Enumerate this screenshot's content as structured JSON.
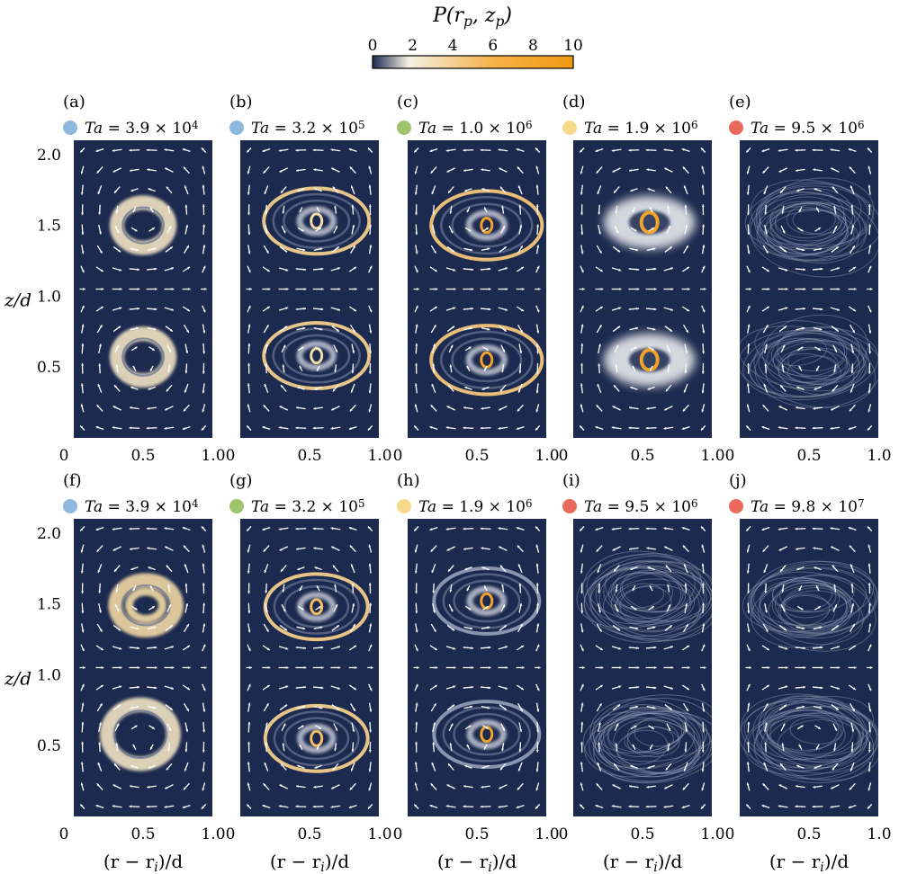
{
  "colorbar": {
    "label": "P(r_p, z_p)",
    "ticks": [
      0,
      2,
      4,
      6,
      8,
      10
    ],
    "range": [
      0,
      10
    ],
    "colors": [
      "#1c2a4f",
      "#f5f1e4",
      "#f6b24a",
      "#f09a10"
    ]
  },
  "chart_data": [
    {
      "type": "heatmap",
      "panel": "(a)",
      "ta_label": "Ta = 3.9 × 10^4",
      "marker_color": "#8eb8dd",
      "xlabel": "",
      "ylabel": "z/d",
      "xlim": [
        0,
        1
      ],
      "ylim": [
        0,
        2.1
      ],
      "xticks": [
        "0",
        "0.5",
        "1.0"
      ],
      "yticks": [
        "0.5",
        "1.0",
        "1.5",
        "2.0"
      ],
      "vortices": [
        {
          "center": [
            0.5,
            1.5
          ],
          "orbit_radius": [
            0.19,
            0.29
          ],
          "peak": 3,
          "tint": "#f1e2c2",
          "pattern": "ring"
        },
        {
          "center": [
            0.5,
            0.57
          ],
          "orbit_radius": [
            0.19,
            0.3
          ],
          "peak": 3,
          "tint": "#f1e2c2",
          "pattern": "ring"
        }
      ]
    },
    {
      "type": "heatmap",
      "panel": "(b)",
      "ta_label": "Ta = 3.2 × 10^5",
      "marker_color": "#8eb8dd",
      "xlabel": "",
      "ylabel": "",
      "xlim": [
        0,
        1
      ],
      "ylim": [
        0,
        2.1
      ],
      "xticks": [
        "0",
        "0.5",
        "1.0"
      ],
      "yticks": [],
      "vortices": [
        {
          "center": [
            0.55,
            1.53
          ],
          "orbit_radius": [
            0.38,
            0.42
          ],
          "peak": 4,
          "tint": "#f2cd8b",
          "pattern": "nested"
        },
        {
          "center": [
            0.55,
            0.58
          ],
          "orbit_radius": [
            0.38,
            0.42
          ],
          "peak": 4,
          "tint": "#f2cd8b",
          "pattern": "nested"
        }
      ]
    },
    {
      "type": "heatmap",
      "panel": "(c)",
      "ta_label": "Ta = 1.0 × 10^6",
      "marker_color": "#9ec46c",
      "xlabel": "",
      "ylabel": "",
      "xlim": [
        0,
        1
      ],
      "ylim": [
        0,
        2.1
      ],
      "xticks": [
        "0",
        "0.5",
        "1.0"
      ],
      "yticks": [],
      "vortices": [
        {
          "center": [
            0.57,
            1.5
          ],
          "orbit_radius": [
            0.4,
            0.44
          ],
          "peak": 8,
          "tint": "#f3c57a",
          "pattern": "nested"
        },
        {
          "center": [
            0.57,
            0.55
          ],
          "orbit_radius": [
            0.4,
            0.44
          ],
          "peak": 8,
          "tint": "#f3c57a",
          "pattern": "nested"
        }
      ]
    },
    {
      "type": "heatmap",
      "panel": "(d)",
      "ta_label": "Ta = 1.9 × 10^6",
      "marker_color": "#f7d98c",
      "xlabel": "",
      "ylabel": "",
      "xlim": [
        0,
        1
      ],
      "ylim": [
        0,
        2.1
      ],
      "xticks": [
        "0",
        "0.5",
        "1.0"
      ],
      "yticks": [],
      "vortices": [
        {
          "center": [
            0.55,
            1.52
          ],
          "orbit_radius": [
            0.33,
            0.34
          ],
          "peak": 9,
          "tint": "#e9eaee",
          "pattern": "cloud"
        },
        {
          "center": [
            0.55,
            0.55
          ],
          "orbit_radius": [
            0.33,
            0.34
          ],
          "peak": 9,
          "tint": "#e9eaee",
          "pattern": "cloud"
        }
      ]
    },
    {
      "type": "heatmap",
      "panel": "(e)",
      "ta_label": "Ta = 9.5 × 10^6",
      "marker_color": "#ea6a5c",
      "xlabel": "",
      "ylabel": "",
      "xlim": [
        0,
        1
      ],
      "ylim": [
        0,
        2.1
      ],
      "xticks": [
        "0",
        "0.5",
        "1.0"
      ],
      "yticks": [],
      "vortices": [
        {
          "center": [
            0.5,
            1.5
          ],
          "orbit_radius": [
            0.5,
            0.5
          ],
          "peak": 1,
          "tint": "#8f9bb5",
          "pattern": "tangle"
        },
        {
          "center": [
            0.5,
            0.55
          ],
          "orbit_radius": [
            0.5,
            0.5
          ],
          "peak": 1,
          "tint": "#8f9bb5",
          "pattern": "tangle"
        }
      ]
    },
    {
      "type": "heatmap",
      "panel": "(f)",
      "ta_label": "Ta = 3.9 × 10^4",
      "marker_color": "#8eb8dd",
      "xlabel": "(r − r_i)/d",
      "ylabel": "z/d",
      "xlim": [
        0,
        1
      ],
      "ylim": [
        0,
        2.1
      ],
      "xticks": [
        "0",
        "0.5",
        "1.0"
      ],
      "yticks": [
        "0.5",
        "1.0",
        "1.5",
        "2.0"
      ],
      "vortices": [
        {
          "center": [
            0.52,
            1.49
          ],
          "orbit_radius": [
            0.22,
            0.32
          ],
          "peak": 4,
          "tint": "#f1d7a4",
          "pattern": "ring"
        },
        {
          "center": [
            0.48,
            0.58
          ],
          "orbit_radius": [
            0.24,
            0.38
          ],
          "peak": 3,
          "tint": "#f1e2c2",
          "pattern": "ring"
        }
      ]
    },
    {
      "type": "heatmap",
      "panel": "(g)",
      "ta_label": "Ta = 3.2 × 10^5",
      "marker_color": "#9ec46c",
      "xlabel": "(r − r_i)/d",
      "ylabel": "",
      "xlim": [
        0,
        1
      ],
      "ylim": [
        0,
        2.1
      ],
      "xticks": [
        "0",
        "0.5",
        "1.0"
      ],
      "yticks": [],
      "vortices": [
        {
          "center": [
            0.55,
            1.48
          ],
          "orbit_radius": [
            0.37,
            0.42
          ],
          "peak": 6,
          "tint": "#f2cd8b",
          "pattern": "nested"
        },
        {
          "center": [
            0.55,
            0.55
          ],
          "orbit_radius": [
            0.37,
            0.42
          ],
          "peak": 6,
          "tint": "#f2cd8b",
          "pattern": "nested"
        }
      ]
    },
    {
      "type": "heatmap",
      "panel": "(h)",
      "ta_label": "Ta = 1.9 × 10^6",
      "marker_color": "#f7d98c",
      "xlabel": "(r − r_i)/d",
      "ylabel": "",
      "xlim": [
        0,
        1
      ],
      "ylim": [
        0,
        2.1
      ],
      "xticks": [
        "0",
        "0.5",
        "1.0"
      ],
      "yticks": [],
      "vortices": [
        {
          "center": [
            0.57,
            1.52
          ],
          "orbit_radius": [
            0.38,
            0.42
          ],
          "peak": 10,
          "tint": "#8f9bb5",
          "pattern": "nested"
        },
        {
          "center": [
            0.57,
            0.58
          ],
          "orbit_radius": [
            0.38,
            0.42
          ],
          "peak": 10,
          "tint": "#8f9bb5",
          "pattern": "nested"
        }
      ]
    },
    {
      "type": "heatmap",
      "panel": "(i)",
      "ta_label": "Ta = 9.5 × 10^6",
      "marker_color": "#ea6a5c",
      "xlabel": "(r − r_i)/d",
      "ylabel": "",
      "xlim": [
        0,
        1
      ],
      "ylim": [
        0,
        2.1
      ],
      "xticks": [
        "0",
        "0.5",
        "1.0"
      ],
      "yticks": [],
      "vortices": [
        {
          "center": [
            0.55,
            1.55
          ],
          "orbit_radius": [
            0.48,
            0.5
          ],
          "peak": 2,
          "tint": "#98a4bf",
          "pattern": "tangle"
        },
        {
          "center": [
            0.55,
            0.55
          ],
          "orbit_radius": [
            0.48,
            0.5
          ],
          "peak": 2,
          "tint": "#98a4bf",
          "pattern": "tangle"
        }
      ]
    },
    {
      "type": "heatmap",
      "panel": "(j)",
      "ta_label": "Ta = 9.8 × 10^7",
      "marker_color": "#ea6a5c",
      "xlabel": "(r − r_i)/d",
      "ylabel": "",
      "xlim": [
        0,
        1
      ],
      "ylim": [
        0,
        2.1
      ],
      "xticks": [
        "0",
        "0.5",
        "1.0"
      ],
      "yticks": [],
      "vortices": [
        {
          "center": [
            0.5,
            1.5
          ],
          "orbit_radius": [
            0.5,
            0.5
          ],
          "peak": 1,
          "tint": "#8f9bb5",
          "pattern": "tangle"
        },
        {
          "center": [
            0.5,
            0.55
          ],
          "orbit_radius": [
            0.5,
            0.5
          ],
          "peak": 1,
          "tint": "#8f9bb5",
          "pattern": "tangle"
        }
      ]
    }
  ]
}
